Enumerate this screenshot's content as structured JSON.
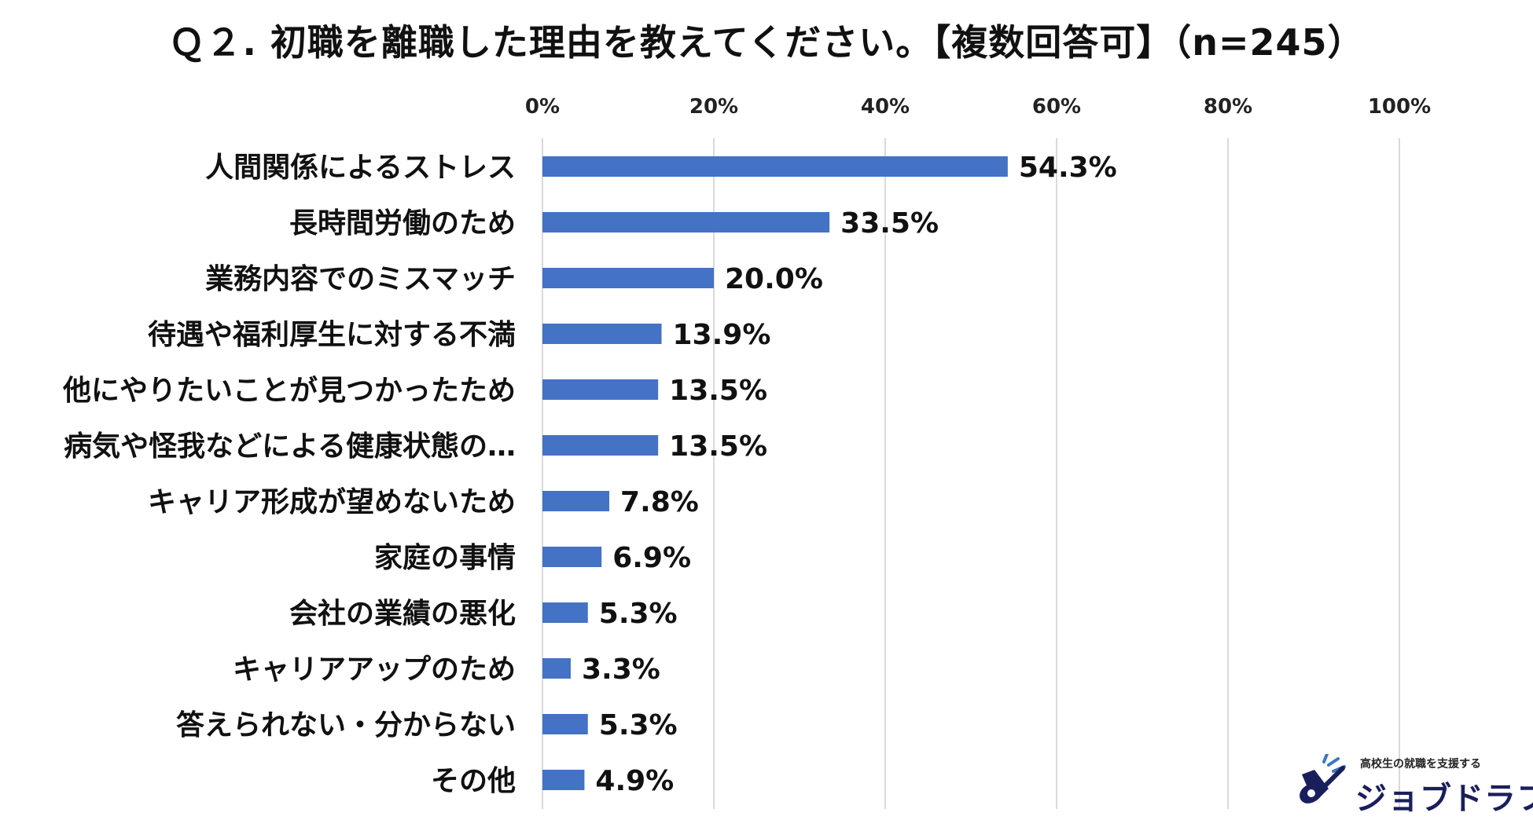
{
  "chart_data": {
    "type": "bar",
    "orientation": "horizontal",
    "title": "Ｑ２. 初職を離職した理由を教えてください。【複数回答可】（n=245）",
    "categories": [
      "人間関係によるストレス",
      "長時間労働のため",
      "業務内容でのミスマッチ",
      "待遇や福利厚生に対する不満",
      "他にやりたいことが見つかったため",
      "病気や怪我などによる健康状態の…",
      "キャリア形成が望めないため",
      "家庭の事情",
      "会社の業績の悪化",
      "キャリアアップのため",
      "答えられない・分からない",
      "その他"
    ],
    "values": [
      54.3,
      33.5,
      20.0,
      13.9,
      13.5,
      13.5,
      7.8,
      6.9,
      5.3,
      3.3,
      5.3,
      4.9
    ],
    "value_labels": [
      "54.3%",
      "33.5%",
      "20.0%",
      "13.9%",
      "13.5%",
      "13.5%",
      "7.8%",
      "6.9%",
      "5.3%",
      "3.3%",
      "5.3%",
      "4.9%"
    ],
    "xlim": [
      0,
      100
    ],
    "xticks": [
      0,
      20,
      40,
      60,
      80,
      100
    ],
    "xtick_labels": [
      "0%",
      "20%",
      "40%",
      "60%",
      "80%",
      "100%"
    ],
    "axis_position": "top",
    "grid": true,
    "bar_color": "#4472c4",
    "legend": "none"
  },
  "logo": {
    "tagline": "高校生の就職を支援する",
    "name": "ジョブドラフト"
  }
}
